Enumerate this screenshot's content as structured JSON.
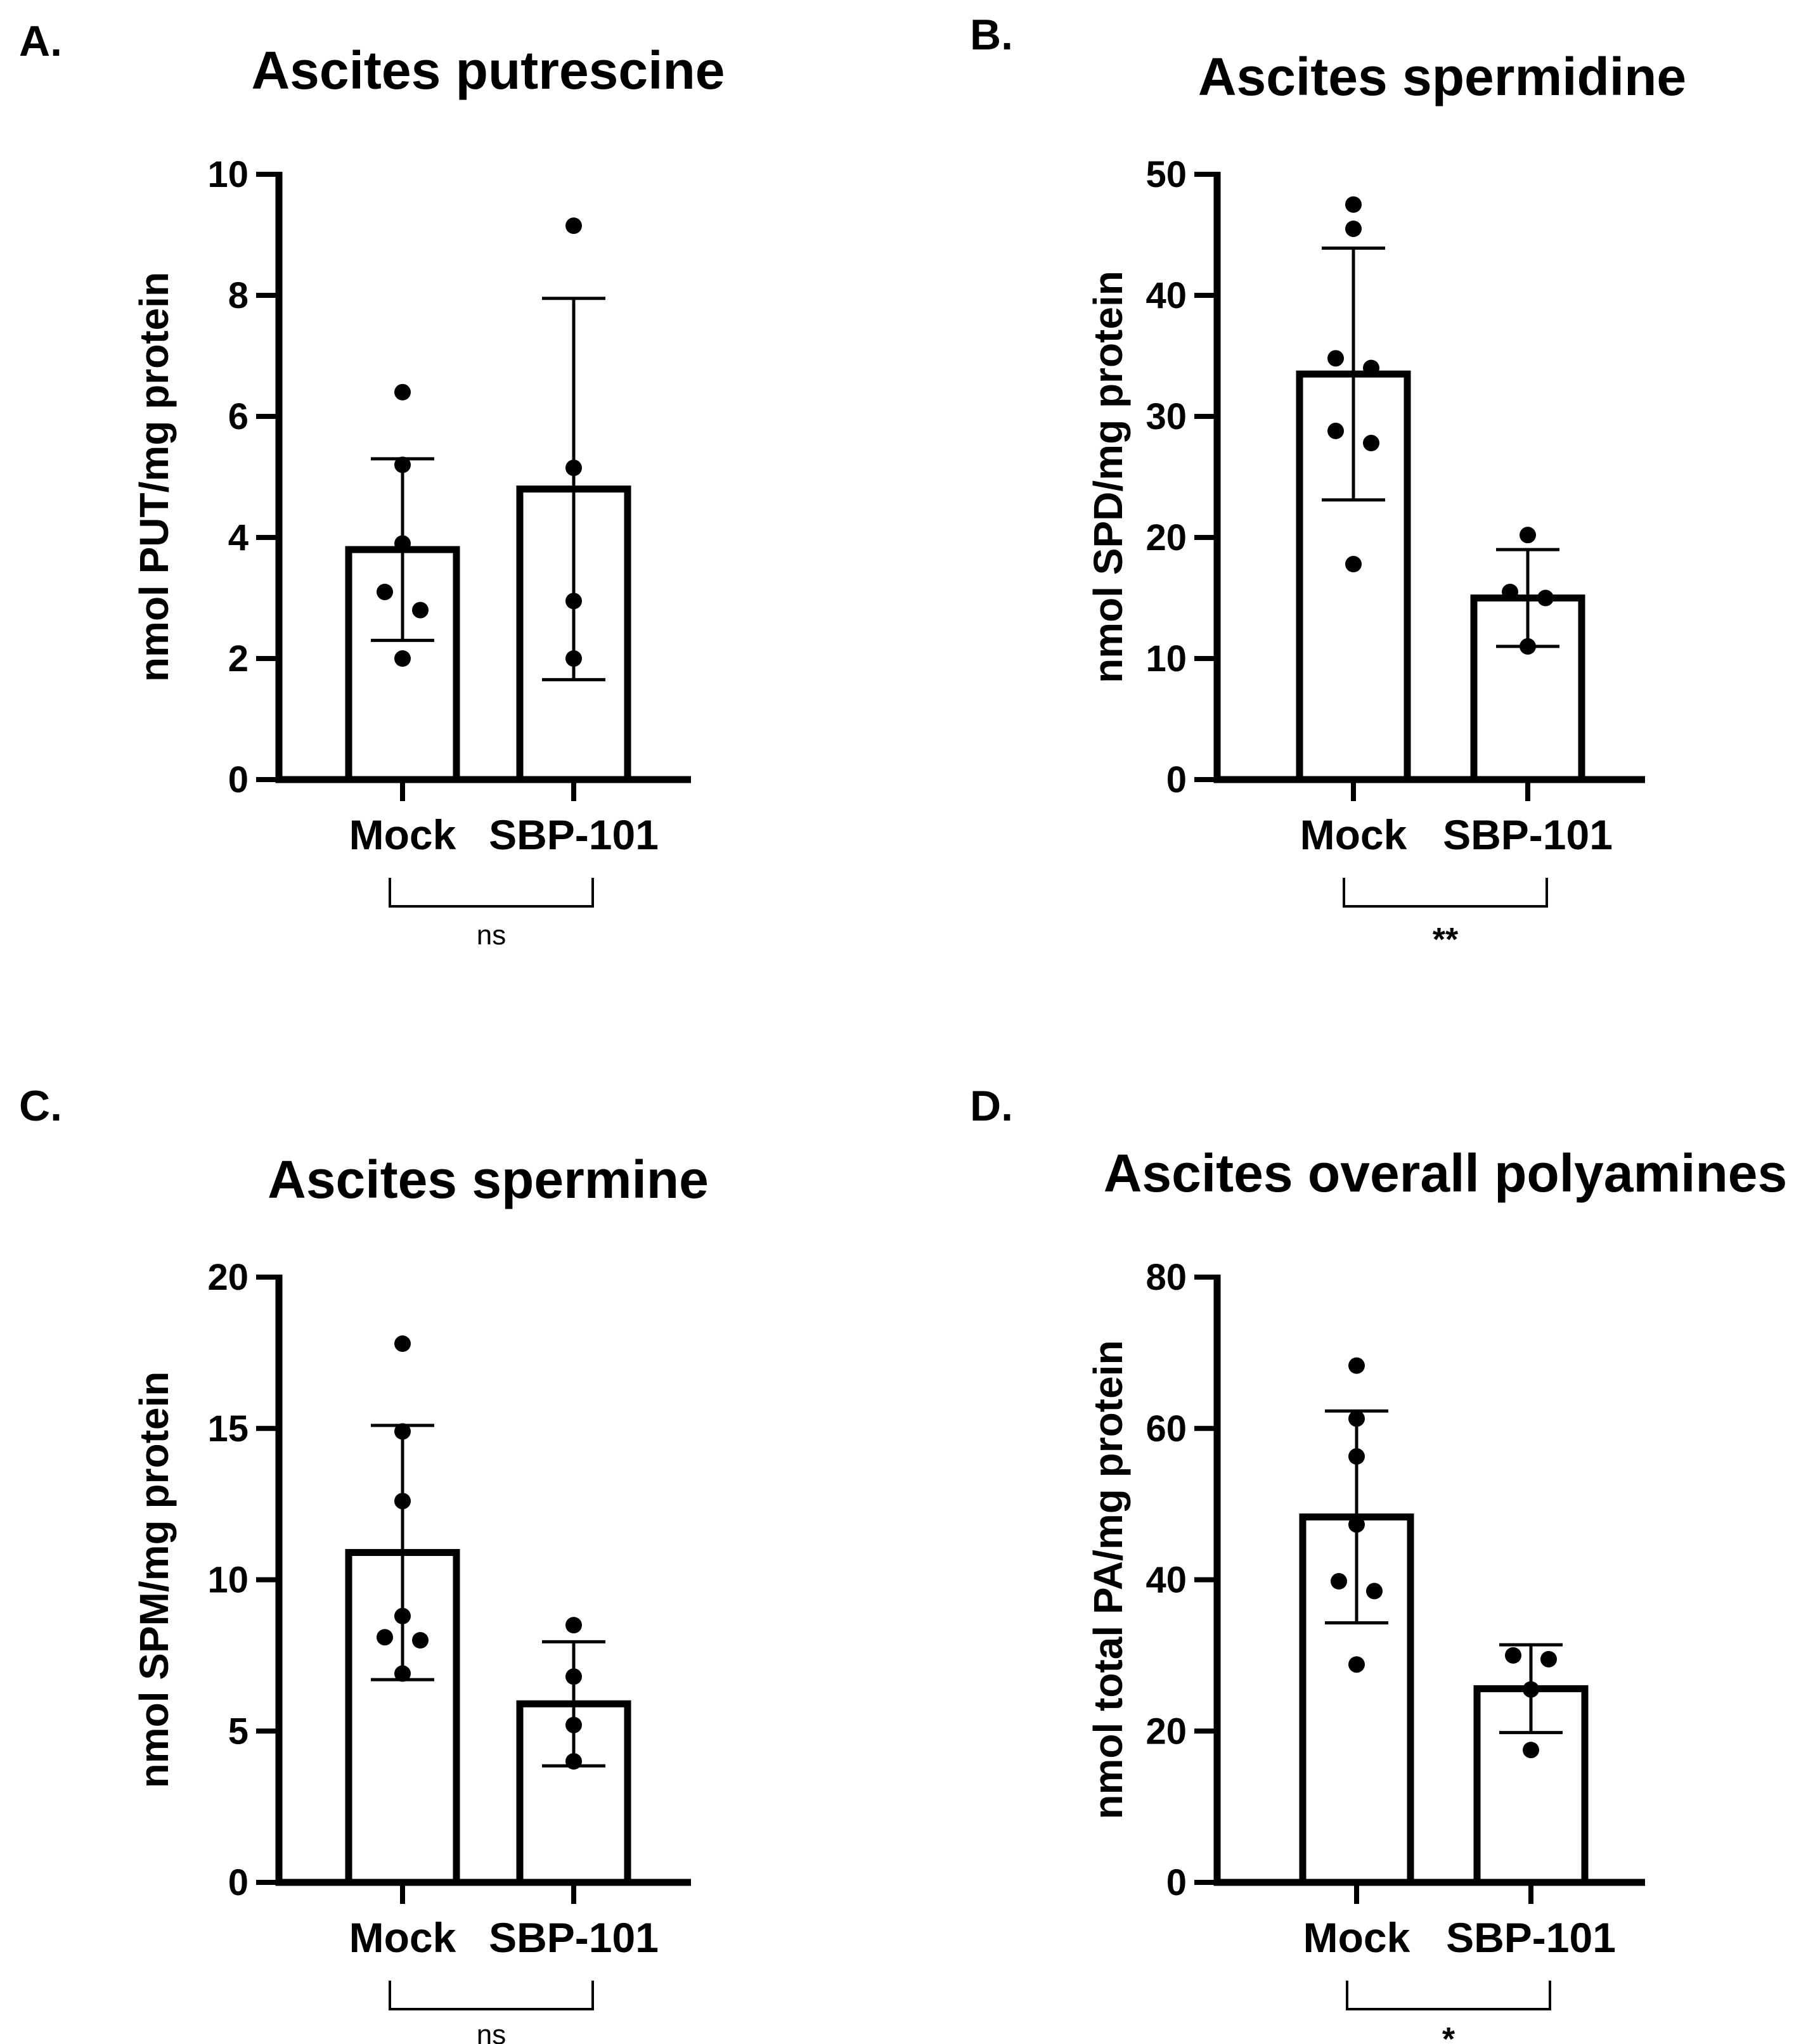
{
  "chart_data": [
    {
      "type": "bar",
      "panel_label": "A.",
      "title": "Ascites putrescine",
      "xlabel": "",
      "ylabel": "nmol PUT/mg protein",
      "ylim": [
        0,
        10
      ],
      "yticks": [
        0,
        2,
        4,
        6,
        8,
        10
      ],
      "categories": [
        "Mock",
        "SBP-101"
      ],
      "values": [
        3.8,
        4.8
      ],
      "error": [
        1.5,
        3.15
      ],
      "points": [
        [
          6.4,
          5.2,
          3.9,
          3.1,
          2.8,
          2.0
        ],
        [
          9.15,
          5.15,
          2.95,
          2.0
        ]
      ],
      "significance": "ns",
      "grid": false
    },
    {
      "type": "bar",
      "panel_label": "B.",
      "title": "Ascites spermidine",
      "xlabel": "",
      "ylabel": "nmol SPD/mg protein",
      "ylim": [
        0,
        50
      ],
      "yticks": [
        0,
        10,
        20,
        30,
        40,
        50
      ],
      "categories": [
        "Mock",
        "SBP-101"
      ],
      "values": [
        33.5,
        15.0
      ],
      "error": [
        10.4,
        4.0
      ],
      "points": [
        [
          47.5,
          45.5,
          34.8,
          34.0,
          28.8,
          27.8,
          17.8
        ],
        [
          20.2,
          15.5,
          15.0,
          11.0
        ]
      ],
      "significance": "**",
      "grid": false
    },
    {
      "type": "bar",
      "panel_label": "C.",
      "title": "Ascites spermine",
      "xlabel": "",
      "ylabel": "nmol SPM/mg protein",
      "ylim": [
        0,
        20
      ],
      "yticks": [
        0,
        5,
        10,
        15,
        20
      ],
      "categories": [
        "Mock",
        "SBP-101"
      ],
      "values": [
        10.9,
        5.9
      ],
      "error": [
        4.2,
        2.05
      ],
      "points": [
        [
          17.8,
          14.9,
          12.6,
          8.8,
          8.1,
          8.0,
          6.9
        ],
        [
          8.5,
          6.8,
          5.2,
          4.0
        ]
      ],
      "significance": "ns",
      "grid": false
    },
    {
      "type": "bar",
      "panel_label": "D.",
      "title": "Ascites overall polyamines",
      "xlabel": "",
      "ylabel": "nmol total PA/mg protein",
      "ylim": [
        0,
        80
      ],
      "yticks": [
        0,
        20,
        40,
        60,
        80
      ],
      "categories": [
        "Mock",
        "SBP-101"
      ],
      "values": [
        48.3,
        25.6
      ],
      "error": [
        14.0,
        5.8
      ],
      "points": [
        [
          68.3,
          61.3,
          56.3,
          47.3,
          39.8,
          38.5,
          28.8
        ],
        [
          30.0,
          29.5,
          25.5,
          17.5
        ]
      ],
      "significance": "*",
      "grid": false
    }
  ]
}
